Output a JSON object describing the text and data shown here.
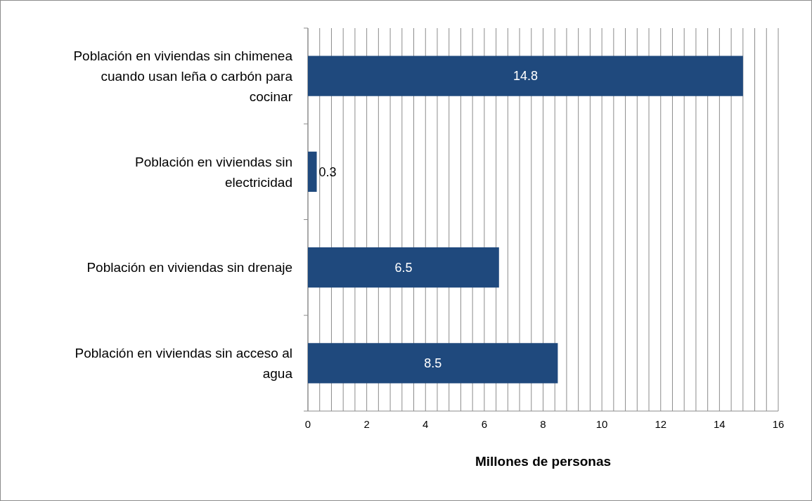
{
  "chart_data": {
    "type": "bar",
    "orientation": "horizontal",
    "xlabel": "Millones de personas",
    "categories": [
      "Población en viviendas sin chimenea cuando usan leña o carbón para cocinar",
      "Población en viviendas sin electricidad",
      "Población en viviendas sin drenaje",
      "Población en viviendas sin acceso al agua"
    ],
    "values": [
      14.8,
      0.3,
      6.5,
      8.5
    ],
    "color": "#1f497d",
    "data_labels": true,
    "grid": "x",
    "xlim": [
      0,
      16
    ],
    "xticks": [
      0,
      {
        "value": 0.4,
        "label": null
      },
      {
        "value": 0.8,
        "label": null
      },
      {
        "value": 1.2,
        "label": null
      },
      {
        "value": 1.6,
        "label": null
      },
      2,
      {
        "value": 2.4,
        "label": null
      },
      {
        "value": 2.8,
        "label": null
      },
      {
        "value": 3.2,
        "label": null
      },
      {
        "value": 3.6,
        "label": null
      },
      4,
      {
        "value": 4.4,
        "label": null
      },
      {
        "value": 4.8,
        "label": null
      },
      {
        "value": 5.2,
        "label": null
      },
      {
        "value": 5.6,
        "label": null
      },
      6,
      {
        "value": 6.4,
        "label": null
      },
      {
        "value": 6.8,
        "label": null
      },
      {
        "value": 7.2,
        "label": null
      },
      {
        "value": 7.6,
        "label": null
      },
      8,
      {
        "value": 8.4,
        "label": null
      },
      {
        "value": 8.8,
        "label": null
      },
      {
        "value": 9.2,
        "label": null
      },
      {
        "value": 9.6,
        "label": null
      },
      10,
      {
        "value": 10.4,
        "label": null
      },
      {
        "value": 10.8,
        "label": null
      },
      {
        "value": 11.2,
        "label": null
      },
      {
        "value": 11.6,
        "label": null
      },
      12,
      {
        "value": 12.4,
        "label": null
      },
      {
        "value": 12.8,
        "label": null
      },
      {
        "value": 13.2,
        "label": null
      },
      {
        "value": 13.6,
        "label": null
      },
      14,
      {
        "value": 14.4,
        "label": null
      },
      {
        "value": 14.8,
        "label": null
      },
      {
        "value": 15.2,
        "label": null
      },
      {
        "value": 15.6,
        "label": null
      },
      16
    ]
  }
}
